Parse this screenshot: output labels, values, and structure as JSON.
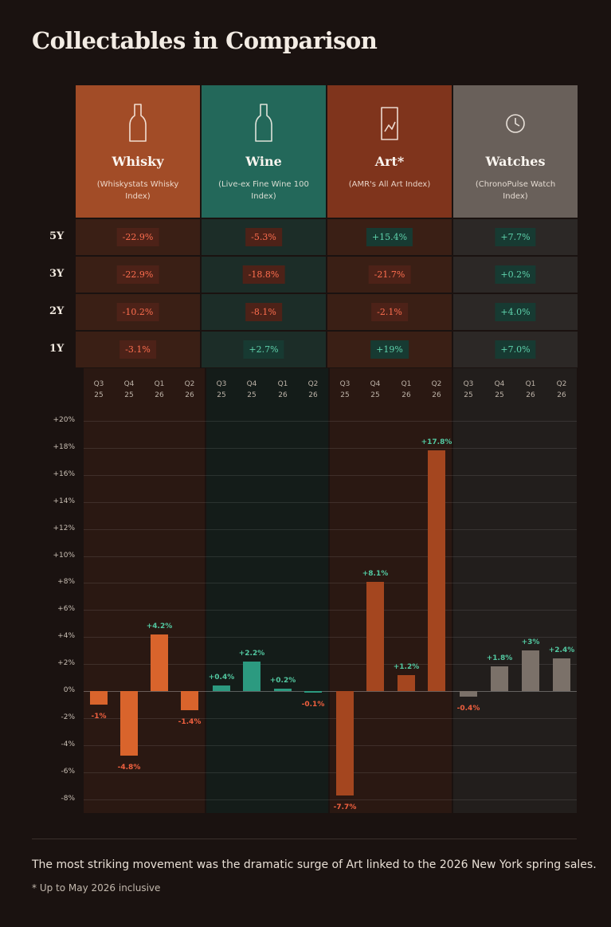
{
  "title": "Collectables in Comparison",
  "categories": [
    {
      "name": "Whisky",
      "subtitle": "(Whiskystats Whisky Index)",
      "icon": "bottle-icon",
      "color": "#a24c27"
    },
    {
      "name": "Wine",
      "subtitle": "(Live-ex Fine Wine 100 Index)",
      "icon": "bottle-icon",
      "color": "#23685a"
    },
    {
      "name": "Art*",
      "subtitle": "(AMR's All Art Index)",
      "icon": "picture-frame-icon",
      "color": "#7f341c"
    },
    {
      "name": "Watches",
      "subtitle": "(ChronoPulse Watch Index)",
      "icon": "clock-icon",
      "color": "#69605a"
    }
  ],
  "periods": [
    {
      "label": "5Y",
      "values": [
        "-22.9%",
        "-5.3%",
        "+15.4%",
        "+7.7%"
      ]
    },
    {
      "label": "3Y",
      "values": [
        "-22.9%",
        "-18.8%",
        "-21.7%",
        "+0.2%"
      ]
    },
    {
      "label": "2Y",
      "values": [
        "-10.2%",
        "-8.1%",
        "-2.1%",
        "+4.0%"
      ]
    },
    {
      "label": "1Y",
      "values": [
        "-3.1%",
        "+2.7%",
        "+19%",
        "+7.0%"
      ]
    }
  ],
  "chart_data": {
    "type": "bar",
    "quarters": [
      [
        "Q3",
        "25"
      ],
      [
        "Q4",
        "25"
      ],
      [
        "Q1",
        "26"
      ],
      [
        "Q2",
        "26"
      ]
    ],
    "ylim": [
      -9,
      21
    ],
    "yticks": [
      "+20%",
      "+18%",
      "+16%",
      "+14%",
      "+12%",
      "+10%",
      "+8%",
      "+6%",
      "+4%",
      "+2%",
      "0%",
      "-2%",
      "-4%",
      "-6%",
      "-8%"
    ],
    "series": [
      {
        "name": "Whisky",
        "values": [
          -1,
          -4.8,
          4.2,
          -1.4
        ],
        "labels": [
          "-1%",
          "-4.8%",
          "+4.2%",
          "-1.4%"
        ],
        "color": "#d9642c"
      },
      {
        "name": "Wine",
        "values": [
          0.4,
          2.2,
          0.2,
          -0.1
        ],
        "labels": [
          "+0.4%",
          "+2.2%",
          "+0.2%",
          "-0.1%"
        ],
        "color": "#2c9a80"
      },
      {
        "name": "Art*",
        "values": [
          -7.7,
          8.1,
          1.2,
          17.8
        ],
        "labels": [
          "-7.7%",
          "+8.1%",
          "+1.2%",
          "+17.8%"
        ],
        "color": "#a4461f"
      },
      {
        "name": "Watches",
        "values": [
          -0.4,
          1.8,
          3,
          2.4
        ],
        "labels": [
          "-0.4%",
          "+1.8%",
          "+3%",
          "+2.4%"
        ],
        "color": "#7b7169"
      }
    ]
  },
  "footer_text": "The most striking movement was the dramatic surge of Art linked to the 2026 New York spring sales.",
  "footnote": "* Up to May 2026 inclusive"
}
